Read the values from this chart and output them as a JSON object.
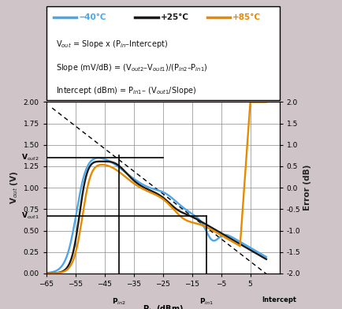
{
  "xlim": [
    -65,
    15
  ],
  "ylim_left": [
    0,
    2.0
  ],
  "ylim_right": [
    -2.0,
    2.0
  ],
  "xticks": [
    -65,
    -55,
    -45,
    -35,
    -25,
    -15,
    -5,
    5
  ],
  "yticks_left": [
    0,
    0.25,
    0.5,
    0.75,
    1.0,
    1.25,
    1.5,
    1.75,
    2.0
  ],
  "yticks_right": [
    -2.0,
    -1.5,
    -1.0,
    -0.5,
    0,
    0.5,
    1.0,
    1.5,
    2.0
  ],
  "color_cold": "#4da6e8",
  "color_room": "#1a1a1a",
  "color_hot": "#e88a00",
  "bg_color": "#cfc5c8",
  "vout2_y": 1.35,
  "vout2_xend": -25,
  "vout1_y": 0.67,
  "vout1_xend": -10,
  "pin2_x": -40,
  "pin1_x": -10,
  "dashed_x1": -63,
  "dashed_y1": 1.93,
  "dashed_x2": 13,
  "dashed_y2": -0.07,
  "eq1": "V$_{out}$ = Slope x (P$_{in}$–Intercept)",
  "eq2": "Slope (mV/dB) = (V$_{out2}$–V$_{out1}$)/(P$_{in2}$–P$_{in1}$)",
  "eq3": "Intercept (dBm) = P$_{in1}$– (V$_{out1}$/Slope)",
  "leg1": "‒40°C",
  "leg2": "+25°C",
  "leg3": "+85°C"
}
